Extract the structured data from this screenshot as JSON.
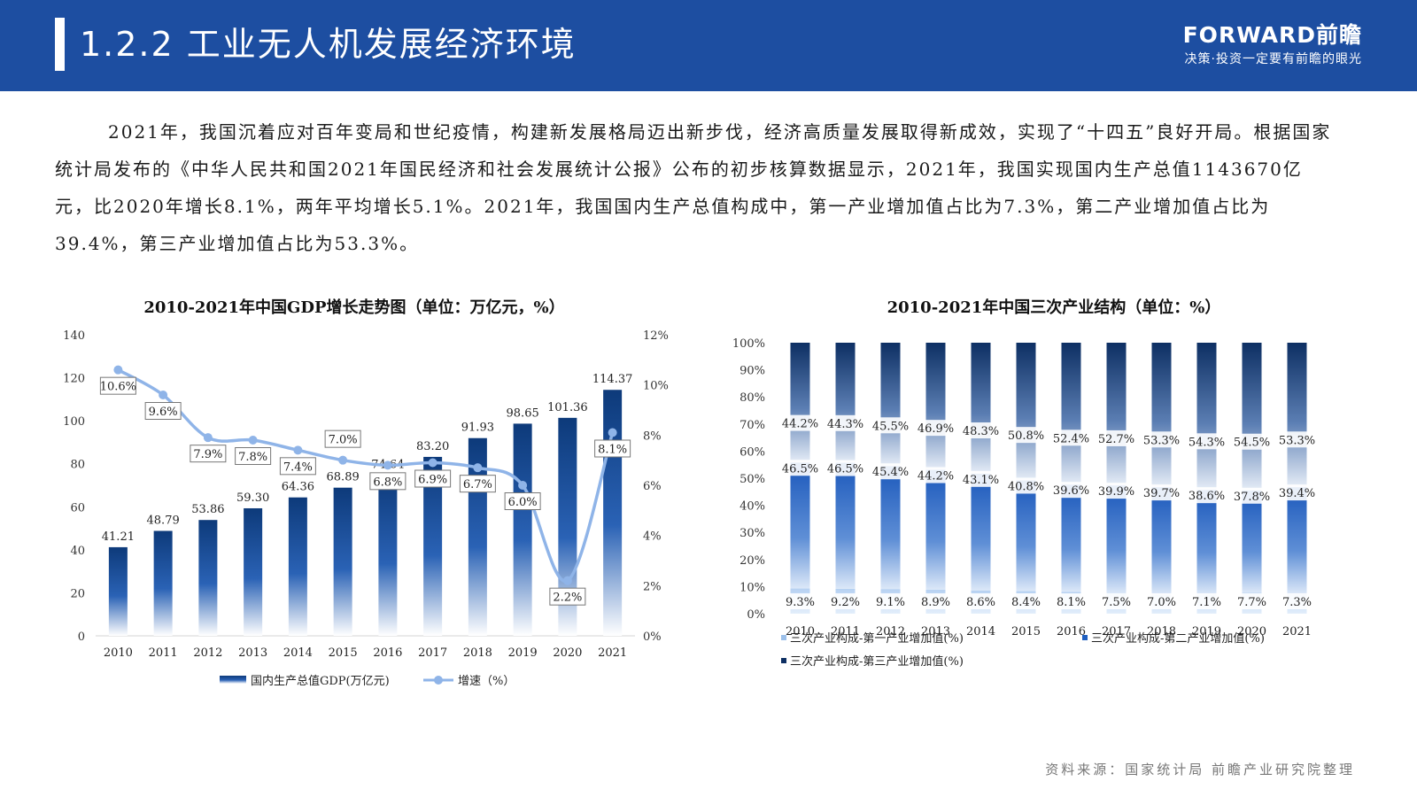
{
  "header": {
    "title": "1.2.2 工业无人机发展经济环境",
    "brand_name": "FORWARD前瞻",
    "brand_slogan": "决策·投资一定要有前瞻的眼光"
  },
  "paragraph": "2021年，我国沉着应对百年变局和世纪疫情，构建新发展格局迈出新步伐，经济高质量发展取得新成效，实现了“十四五”良好开局。根据国家统计局发布的《中华人民共和国2021年国民经济和社会发展统计公报》公布的初步核算数据显示，2021年，我国实现国内生产总值1143670亿元，比2020年增长8.1%，两年平均增长5.1%。2021年，我国国内生产总值构成中，第一产业增加值占比为7.3%，第二产业增加值占比为39.4%，第三产业增加值占比为53.3%。",
  "source": "资料来源：国家统计局 前瞻产业研究院整理",
  "colors": {
    "header_bg": "#1d4ea1",
    "bar_dark": "#0d3a7a",
    "line": "#8fb4e8",
    "seg_primary": "#9cc0ea",
    "seg_secondary": "#1f5fc0",
    "seg_tertiary": "#0d2f63"
  },
  "chart_data": [
    {
      "type": "bar+line",
      "title": "2010-2021年中国GDP增长走势图（单位：万亿元，%）",
      "categories": [
        "2010",
        "2011",
        "2012",
        "2013",
        "2014",
        "2015",
        "2016",
        "2017",
        "2018",
        "2019",
        "2020",
        "2021"
      ],
      "series": [
        {
          "name": "国内生产总值GDP(万亿元)",
          "type": "bar",
          "axis": "left",
          "values": [
            41.21,
            48.79,
            53.86,
            59.3,
            64.36,
            68.89,
            74.64,
            83.2,
            91.93,
            98.65,
            101.36,
            114.37
          ],
          "labels": [
            "41.21",
            "48.79",
            "53.86",
            "59.30",
            "64.36",
            "68.89",
            "74.64",
            "83.20",
            "91.93",
            "98.65",
            "101.36",
            "114.37"
          ]
        },
        {
          "name": "增速（%）",
          "type": "line",
          "axis": "right",
          "values": [
            10.6,
            9.6,
            7.9,
            7.8,
            7.4,
            7.0,
            6.8,
            6.9,
            6.7,
            6.0,
            2.2,
            8.1
          ],
          "labels": [
            "10.6%",
            "9.6%",
            "7.9%",
            "7.8%",
            "7.4%",
            "7.0%",
            "6.8%",
            "6.9%",
            "6.7%",
            "6.0%",
            "2.2%",
            "8.1%"
          ]
        }
      ],
      "ylim_left": [
        0,
        140
      ],
      "yticks_left": [
        "0",
        "20",
        "40",
        "60",
        "80",
        "100",
        "120",
        "140"
      ],
      "ylim_right": [
        0,
        12
      ],
      "yticks_right": [
        "0%",
        "2%",
        "4%",
        "6%",
        "8%",
        "10%",
        "12%"
      ],
      "legend_position": "bottom",
      "grid": false
    },
    {
      "type": "bar",
      "stacked": true,
      "title": "2010-2021年中国三次产业结构（单位：%）",
      "categories": [
        "2010",
        "2011",
        "2012",
        "2013",
        "2014",
        "2015",
        "2016",
        "2017",
        "2018",
        "2019",
        "2020",
        "2021"
      ],
      "series": [
        {
          "name": "三次产业构成-第一产业增加值(%)",
          "values": [
            9.3,
            9.2,
            9.1,
            8.9,
            8.6,
            8.4,
            8.1,
            7.5,
            7.0,
            7.1,
            7.7,
            7.3
          ],
          "labels": [
            "9.3%",
            "9.2%",
            "9.1%",
            "8.9%",
            "8.6%",
            "8.4%",
            "8.1%",
            "7.5%",
            "7.0%",
            "7.1%",
            "7.7%",
            "7.3%"
          ]
        },
        {
          "name": "三次产业构成-第二产业增加值(%)",
          "values": [
            46.5,
            46.5,
            45.4,
            44.2,
            43.1,
            40.8,
            39.6,
            39.9,
            39.7,
            38.6,
            37.8,
            39.4
          ],
          "labels": [
            "46.5%",
            "46.5%",
            "45.4%",
            "44.2%",
            "43.1%",
            "40.8%",
            "39.6%",
            "39.9%",
            "39.7%",
            "38.6%",
            "37.8%",
            "39.4%"
          ]
        },
        {
          "name": "三次产业构成-第三产业增加值(%)",
          "values": [
            44.2,
            44.3,
            45.5,
            46.9,
            48.3,
            50.8,
            52.4,
            52.7,
            53.3,
            54.3,
            54.5,
            53.3
          ],
          "labels": [
            "44.2%",
            "44.3%",
            "45.5%",
            "46.9%",
            "48.3%",
            "50.8%",
            "52.4%",
            "52.7%",
            "53.3%",
            "54.3%",
            "54.5%",
            "53.3%"
          ]
        }
      ],
      "ylim": [
        0,
        100
      ],
      "yticks": [
        "0%",
        "10%",
        "20%",
        "30%",
        "40%",
        "50%",
        "60%",
        "70%",
        "80%",
        "90%",
        "100%"
      ],
      "legend_position": "bottom",
      "grid": false
    }
  ]
}
